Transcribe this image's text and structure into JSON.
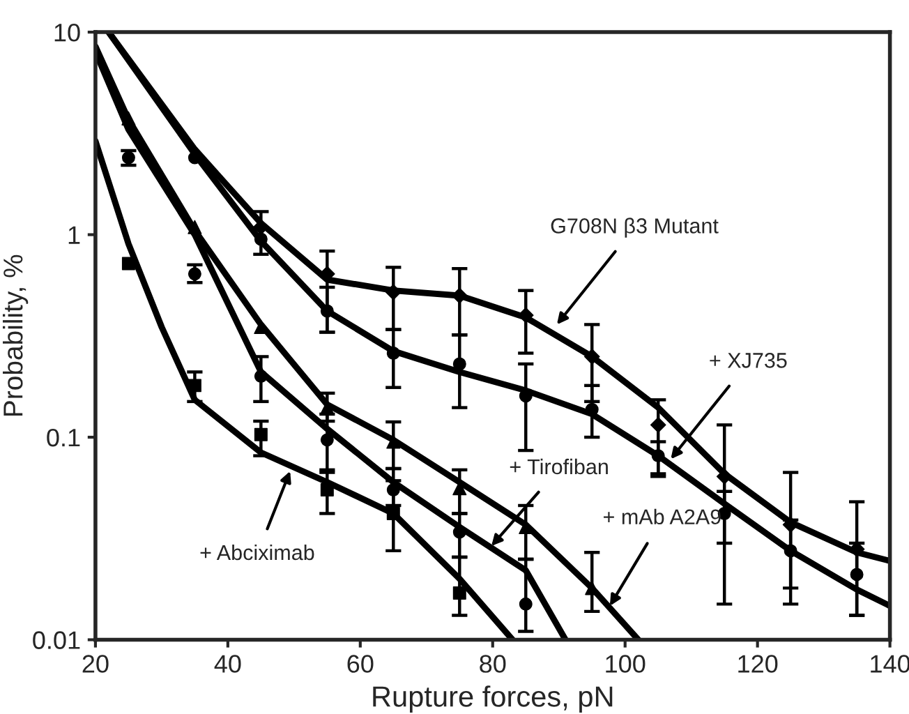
{
  "chart_data": {
    "type": "scatter",
    "xlabel": "Rupture forces, pN",
    "ylabel": "Probability, %",
    "log": "y",
    "grid": false,
    "legend": false,
    "xlim": [
      20,
      140
    ],
    "xticks": [
      20,
      40,
      60,
      80,
      100,
      120,
      140
    ],
    "ylim": [
      0.01,
      10
    ],
    "yticks": [
      0.01,
      0.1,
      1,
      10
    ],
    "series": [
      {
        "marker": "diamond",
        "color": "#000000",
        "x": [
          45,
          55,
          65,
          75,
          85,
          95,
          105,
          115,
          125,
          135
        ],
        "values": [
          1.09,
          0.64,
          0.52,
          0.5,
          0.4,
          0.25,
          0.115,
          0.064,
          0.037,
          0.028
        ],
        "errors": [
          [
            0.8,
            1.3
          ],
          [
            0.33,
            0.83
          ],
          [
            0.34,
            0.69
          ],
          [
            0.32,
            0.68
          ],
          [
            0.26,
            0.53
          ],
          [
            0.15,
            0.36
          ],
          [
            0.064,
            0.153
          ],
          [
            0.015,
            0.115
          ],
          [
            0.015,
            0.067
          ],
          [
            0.0132,
            0.048
          ]
        ]
      },
      {
        "marker": "circle",
        "color": "#000000",
        "x": [
          35,
          45,
          55,
          65,
          75,
          85,
          95,
          105,
          115,
          125,
          135
        ],
        "values": [
          2.4,
          0.95,
          0.42,
          0.26,
          0.23,
          0.16,
          0.137,
          0.081,
          0.042,
          0.0275,
          0.021
        ],
        "errors": [
          null,
          null,
          [
            0.33,
            0.55
          ],
          [
            0.176,
            0.34
          ],
          [
            0.14,
            0.32
          ],
          [
            0.086,
            0.23
          ],
          [
            0.1,
            0.18
          ],
          [
            0.066,
            0.095
          ],
          [
            0.03,
            0.054
          ],
          [
            0.018,
            0.039
          ],
          [
            0.0132,
            0.03
          ]
        ]
      },
      {
        "marker": "triangle",
        "color": "#000000",
        "x": [
          25,
          35,
          45,
          55,
          65,
          75,
          85,
          95
        ],
        "values": [
          3.75,
          1.09,
          0.35,
          0.14,
          0.095,
          0.056,
          0.036,
          0.018
        ],
        "errors": [
          null,
          null,
          null,
          [
            0.12,
            0.165
          ],
          [
            0.07,
            0.119
          ],
          [
            0.042,
            0.069
          ],
          [
            0.025,
            0.046
          ],
          [
            0.0138,
            0.027
          ]
        ]
      },
      {
        "marker": "circle",
        "color": "#000000",
        "x": [
          25,
          35,
          45,
          55,
          65,
          75,
          85
        ],
        "values": [
          2.4,
          0.64,
          0.2,
          0.097,
          0.055,
          0.034,
          0.015
        ],
        "errors": [
          [
            2.2,
            2.6
          ],
          [
            0.58,
            0.71
          ],
          [
            0.15,
            0.25
          ],
          [
            0.069,
            0.13
          ],
          [
            0.046,
            0.07
          ],
          [
            0.0256,
            0.042
          ],
          [
            0.011,
            0.025
          ]
        ]
      },
      {
        "marker": "square",
        "color": "#000000",
        "x": [
          25,
          35,
          45,
          55,
          65,
          75
        ],
        "values": [
          0.72,
          0.18,
          0.103,
          0.055,
          0.042,
          0.017
        ],
        "errors": [
          null,
          [
            0.15,
            0.21
          ],
          [
            0.081,
            0.12
          ],
          [
            0.042,
            0.067
          ],
          [
            0.0275,
            0.061
          ],
          [
            0.0132,
            0.0256
          ]
        ]
      },
      {
        "type": "line",
        "color": "#000000",
        "x": [
          22,
          35,
          45,
          55,
          65,
          75,
          85,
          95,
          105,
          115,
          125,
          135,
          140
        ],
        "values": [
          10,
          2.64,
          1.14,
          0.6,
          0.53,
          0.5,
          0.39,
          0.25,
          0.14,
          0.066,
          0.038,
          0.027,
          0.0245
        ]
      },
      {
        "type": "line",
        "color": "#000000",
        "x": [
          22,
          35,
          45,
          55,
          65,
          75,
          85,
          95,
          105,
          115,
          125,
          135,
          140
        ],
        "values": [
          10,
          2.5,
          0.93,
          0.42,
          0.266,
          0.21,
          0.17,
          0.13,
          0.081,
          0.047,
          0.0275,
          0.0177,
          0.0147
        ]
      },
      {
        "type": "line",
        "color": "#000000",
        "x": [
          20,
          25,
          35,
          45,
          55,
          65,
          75,
          85,
          95,
          102
        ],
        "values": [
          8.5,
          3.7,
          1.05,
          0.36,
          0.145,
          0.097,
          0.06,
          0.037,
          0.018,
          0.01
        ]
      },
      {
        "type": "line",
        "color": "#000000",
        "x": [
          20,
          25,
          35,
          45,
          55,
          65,
          75,
          85,
          91
        ],
        "values": [
          8,
          3.3,
          1.0,
          0.21,
          0.11,
          0.06,
          0.036,
          0.022,
          0.01
        ]
      },
      {
        "type": "line",
        "color": "#000000",
        "x": [
          20,
          25,
          30,
          35,
          45,
          55,
          65,
          75,
          83
        ],
        "values": [
          2.9,
          0.9,
          0.35,
          0.153,
          0.084,
          0.06,
          0.042,
          0.02,
          0.01
        ]
      }
    ],
    "annotations": [
      {
        "text": "G708N β3 Mutant",
        "x": 89.7,
        "y": 0.36
      },
      {
        "text": "+ XJ735",
        "x": 106.9,
        "y": 0.078
      },
      {
        "text": "+ Tirofiban",
        "x": 79.8,
        "y": 0.029
      },
      {
        "text": "+ mAb A2A9",
        "x": 97.7,
        "y": 0.0147
      },
      {
        "text": "+ Abciximab",
        "x": 49.4,
        "y": 0.068
      }
    ]
  }
}
